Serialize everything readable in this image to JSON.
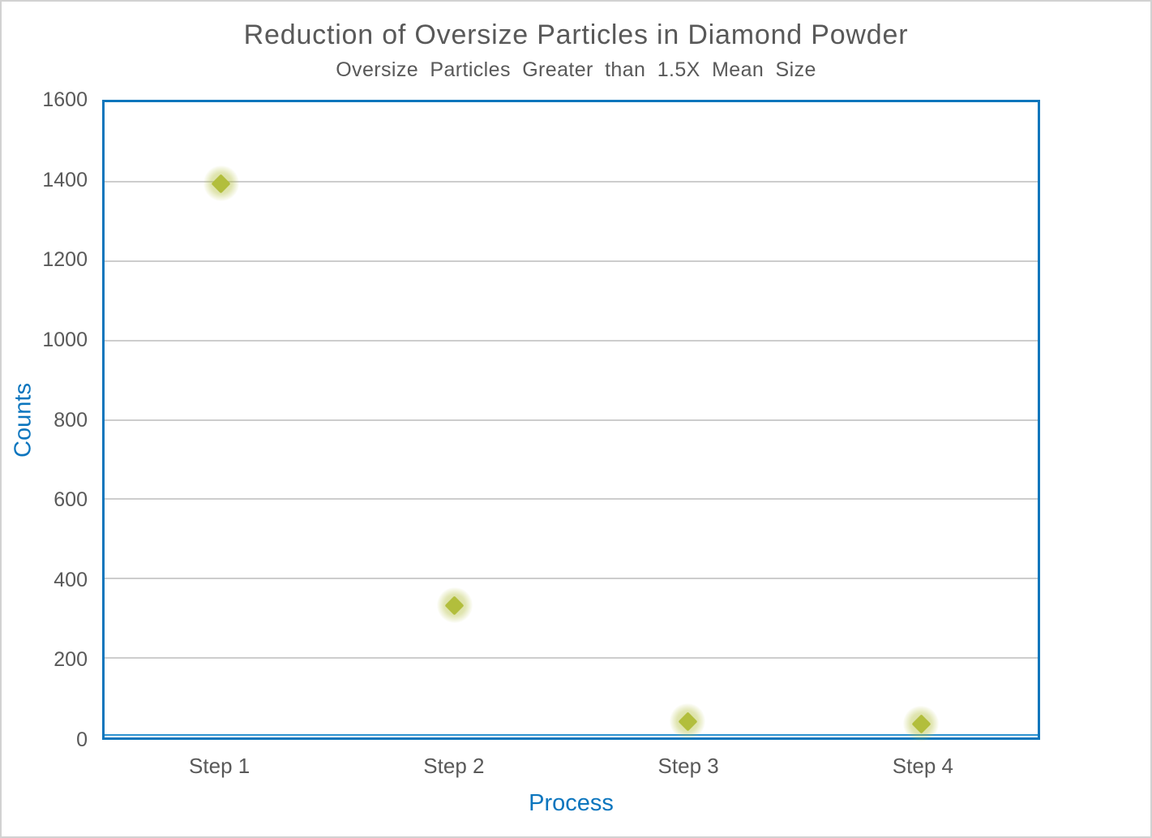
{
  "chart_data": {
    "type": "scatter",
    "title": "Reduction of Oversize Particles in Diamond Powder",
    "subtitle": "Oversize Particles Greater than 1.5X Mean Size",
    "xlabel": "Process",
    "ylabel": "Counts",
    "categories": [
      "Step 1",
      "Step 2",
      "Step 3",
      "Step 4"
    ],
    "values": [
      1395,
      333,
      40,
      34
    ],
    "ylim": [
      0,
      1600
    ],
    "yticks": [
      0,
      200,
      400,
      600,
      800,
      1000,
      1200,
      1400,
      1600
    ],
    "grid": "horizontal-gridlines-on",
    "legend": "none",
    "marker": {
      "shape": "diamond",
      "glow": true
    }
  },
  "colors": {
    "axis_accent_blue": "#0B75BE",
    "plot_border_blue": "#0E76BC",
    "text_gray": "#595959",
    "gridline_gray": "#CDCDCD",
    "marker_green": "#B2BE3C",
    "axis_line_blue": "#2F93D0",
    "page_border_gray": "#D2D2D2"
  }
}
